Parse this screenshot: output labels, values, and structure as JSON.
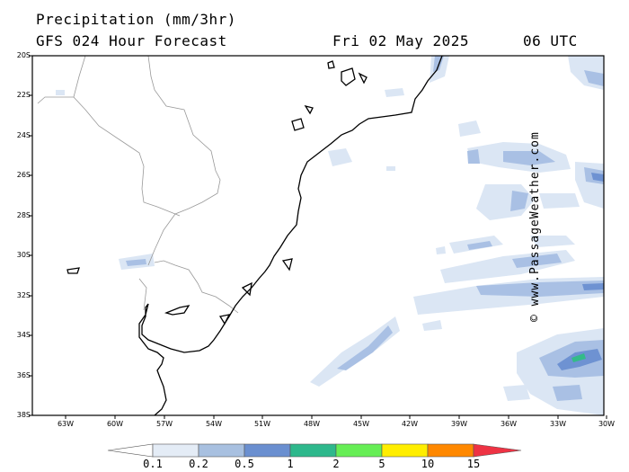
{
  "header": {
    "title": "Precipitation (mm/3hr)",
    "subtitle": "GFS 024 Hour Forecast",
    "date": "Fri 02 May 2025",
    "time": "06 UTC"
  },
  "axes": {
    "lat_labels": [
      "20S",
      "22S",
      "24S",
      "26S",
      "28S",
      "30S",
      "32S",
      "34S",
      "36S",
      "38S"
    ],
    "lon_labels": [
      "63W",
      "60W",
      "57W",
      "54W",
      "51W",
      "48W",
      "45W",
      "42W",
      "39W",
      "36W",
      "33W",
      "30W"
    ]
  },
  "legend": {
    "labels": [
      "0.1",
      "0.2",
      "0.5",
      "1",
      "2",
      "5",
      "10",
      "15"
    ],
    "colors": [
      "#ffffff",
      "#e4ecf6",
      "#a8c0e0",
      "#6a8fd0",
      "#2eb88c",
      "#66ee55",
      "#ffee00",
      "#ff8800",
      "#ee3344"
    ]
  },
  "credit": "© www.PassageWeather.com",
  "colors": {
    "light": "#dbe6f4",
    "medium": "#a9c0e4",
    "dark": "#6e92d2",
    "green": "#33bb88",
    "coast": "#000000",
    "border": "#999999"
  }
}
